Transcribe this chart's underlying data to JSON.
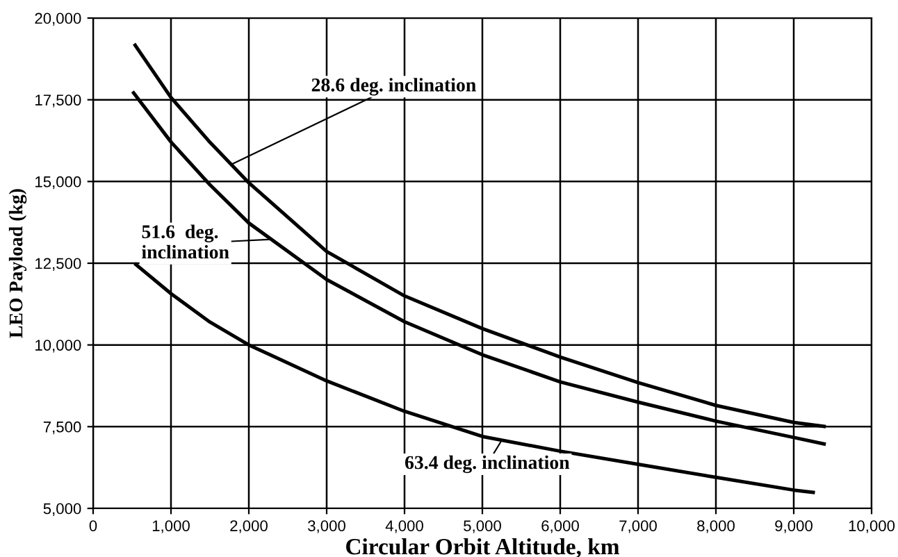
{
  "chart_data": {
    "type": "line",
    "xlabel": "Circular Orbit Altitude, km",
    "ylabel": "LEO Payload (kg)",
    "xlim": [
      0,
      10000
    ],
    "ylim": [
      5000,
      20000
    ],
    "xticks": [
      {
        "value": 0,
        "label": "0"
      },
      {
        "value": 1000,
        "label": "1,000"
      },
      {
        "value": 2000,
        "label": "2,000"
      },
      {
        "value": 3000,
        "label": "3,000"
      },
      {
        "value": 4000,
        "label": "4,000"
      },
      {
        "value": 5000,
        "label": "5,000"
      },
      {
        "value": 6000,
        "label": "6,000"
      },
      {
        "value": 7000,
        "label": "7,000"
      },
      {
        "value": 8000,
        "label": "8,000"
      },
      {
        "value": 9000,
        "label": "9,000"
      },
      {
        "value": 10000,
        "label": "10,000"
      }
    ],
    "yticks": [
      {
        "value": 5000,
        "label": "5,000"
      },
      {
        "value": 7500,
        "label": "7,500"
      },
      {
        "value": 10000,
        "label": "10,000"
      },
      {
        "value": 12500,
        "label": "12,500"
      },
      {
        "value": 15000,
        "label": "15,000"
      },
      {
        "value": 17500,
        "label": "17,500"
      },
      {
        "value": 20000,
        "label": "20,000"
      }
    ],
    "grid": true,
    "legend": false,
    "marker": "none",
    "line_style": "solid",
    "series": [
      {
        "color": "#000000",
        "x": [
          540,
          1000,
          1500,
          2000,
          3000,
          4000,
          5000,
          6000,
          7000,
          8000,
          9000,
          9390
        ],
        "values": [
          19170,
          17570,
          16200,
          14960,
          12860,
          11500,
          10500,
          9630,
          8850,
          8150,
          7630,
          7510
        ]
      },
      {
        "color": "#000000",
        "x": [
          520,
          1000,
          1500,
          2000,
          3000,
          4000,
          5000,
          6000,
          7000,
          8000,
          9000,
          9390
        ],
        "values": [
          17710,
          16210,
          14900,
          13730,
          12000,
          10710,
          9700,
          8870,
          8250,
          7670,
          7170,
          6970
        ]
      },
      {
        "color": "#000000",
        "x": [
          550,
          1000,
          1500,
          2000,
          3000,
          4000,
          5000,
          6000,
          7000,
          8000,
          9000,
          9250
        ],
        "values": [
          12460,
          11570,
          10700,
          10000,
          8900,
          7970,
          7200,
          6750,
          6350,
          5950,
          5560,
          5490
        ]
      }
    ],
    "annotations": [
      {
        "text": "28.6 deg. inclination",
        "x": 1780,
        "y": 15530
      },
      {
        "text": "51.6  deg.\ninclination",
        "x": 2290,
        "y": 13230
      },
      {
        "text": "63.4 deg. inclination",
        "x": 5235,
        "y": 7030
      }
    ]
  }
}
